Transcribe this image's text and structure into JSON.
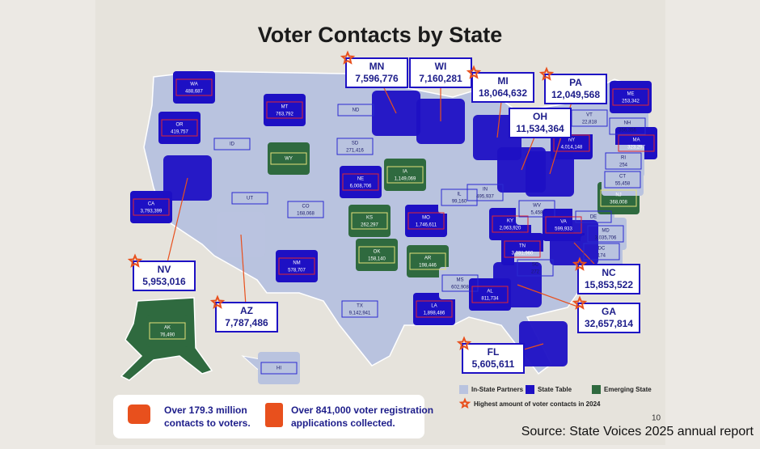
{
  "title": "Voter Contacts by State",
  "states": [
    {
      "abbr": "WA",
      "value": "488,687",
      "group": "State Table"
    },
    {
      "abbr": "OR",
      "value": "419,757",
      "group": "State Table"
    },
    {
      "abbr": "CA",
      "value": "3,793,399",
      "group": "State Table"
    },
    {
      "abbr": "ID",
      "group": "In-State Partners"
    },
    {
      "abbr": "MT",
      "value": "763,792",
      "group": "State Table"
    },
    {
      "abbr": "WY",
      "group": "Emerging State"
    },
    {
      "abbr": "UT",
      "group": "In-State Partners"
    },
    {
      "abbr": "CO",
      "value": "168,068",
      "group": "In-State Partners"
    },
    {
      "abbr": "ND",
      "group": "In-State Partners"
    },
    {
      "abbr": "SD",
      "value": "271,416",
      "group": "In-State Partners"
    },
    {
      "abbr": "NE",
      "value": "6,008,706",
      "group": "State Table"
    },
    {
      "abbr": "KS",
      "value": "262,297",
      "group": "Emerging State"
    },
    {
      "abbr": "OK",
      "value": "158,140",
      "group": "Emerging State"
    },
    {
      "abbr": "NM",
      "value": "578,707",
      "group": "State Table"
    },
    {
      "abbr": "TX",
      "value": "9,142,941",
      "group": "In-State Partners"
    },
    {
      "abbr": "AK",
      "value": "76,490",
      "group": "Emerging State"
    },
    {
      "abbr": "HI",
      "group": "In-State Partners"
    },
    {
      "abbr": "IA",
      "value": "1,149,069",
      "group": "Emerging State"
    },
    {
      "abbr": "MO",
      "value": "1,746,611",
      "group": "State Table"
    },
    {
      "abbr": "AR",
      "value": "198,446",
      "group": "Emerging State"
    },
    {
      "abbr": "LA",
      "value": "1,898,486",
      "group": "State Table"
    },
    {
      "abbr": "MS",
      "value": "602,908",
      "group": "In-State Partners"
    },
    {
      "abbr": "AL",
      "value": "811,734",
      "group": "State Table"
    },
    {
      "abbr": "IL",
      "value": "99,160",
      "group": "In-State Partners"
    },
    {
      "abbr": "IN",
      "value": "495,937",
      "group": "In-State Partners"
    },
    {
      "abbr": "KY",
      "value": "2,063,920",
      "group": "State Table"
    },
    {
      "abbr": "TN",
      "value": "3,031,960",
      "group": "State Table"
    },
    {
      "abbr": "WV",
      "value": "5,458",
      "group": "In-State Partners"
    },
    {
      "abbr": "VA",
      "value": "599,933",
      "group": "State Table"
    },
    {
      "abbr": "SC",
      "value": "272",
      "group": "In-State Partners"
    },
    {
      "abbr": "DE",
      "group": "In-State Partners"
    },
    {
      "abbr": "MD",
      "value": "3,035,706",
      "group": "In-State Partners"
    },
    {
      "abbr": "DC",
      "value": "174",
      "group": "In-State Partners"
    },
    {
      "abbr": "NJ",
      "value": "368,008",
      "group": "Emerging State"
    },
    {
      "abbr": "NY",
      "value": "4,014,148",
      "group": "State Table"
    },
    {
      "abbr": "VT",
      "value": "22,818",
      "group": "In-State Partners"
    },
    {
      "abbr": "NH",
      "value": "356,356",
      "group": "In-State Partners"
    },
    {
      "abbr": "ME",
      "value": "253,342",
      "group": "State Table"
    },
    {
      "abbr": "MA",
      "value": "323,297",
      "group": "State Table"
    },
    {
      "abbr": "RI",
      "value": "254",
      "group": "In-State Partners"
    },
    {
      "abbr": "CT",
      "value": "55,458",
      "group": "In-State Partners"
    },
    {
      "abbr": "MN",
      "value": "7,596,776",
      "group": "State Table",
      "callout": true,
      "star": true
    },
    {
      "abbr": "WI",
      "value": "7,160,281",
      "group": "State Table",
      "callout": true
    },
    {
      "abbr": "MI",
      "value": "18,064,632",
      "group": "State Table",
      "callout": true,
      "star": true
    },
    {
      "abbr": "OH",
      "value": "11,534,364",
      "group": "State Table",
      "callout": true
    },
    {
      "abbr": "PA",
      "value": "12,049,568",
      "group": "State Table",
      "callout": true,
      "star": true
    },
    {
      "abbr": "NV",
      "value": "5,953,016",
      "group": "State Table",
      "callout": true,
      "star": true
    },
    {
      "abbr": "AZ",
      "value": "7,787,486",
      "group": "In-State Partners",
      "callout": true,
      "star": true
    },
    {
      "abbr": "NC",
      "value": "15,853,522",
      "group": "State Table",
      "callout": true,
      "star": true
    },
    {
      "abbr": "GA",
      "value": "32,657,814",
      "group": "State Table",
      "callout": true,
      "star": true
    },
    {
      "abbr": "FL",
      "value": "5,605,611",
      "group": "State Table",
      "callout": true,
      "star": true
    }
  ],
  "legend": {
    "items": [
      {
        "label": "In-State Partners",
        "color": "#b9c3df"
      },
      {
        "label": "State Table",
        "color": "#1d10c4"
      },
      {
        "label": "Emerging State",
        "color": "#2f6a3f"
      }
    ],
    "star": "Highest amount of voter contacts in 2024"
  },
  "footer": {
    "stat1": [
      "Over 179.3 million",
      "contacts to voters."
    ],
    "stat2": [
      "Over 841,000 voter registration",
      "applications collected."
    ]
  },
  "page_number": "10",
  "source": "Source: State Voices 2025 annual report"
}
